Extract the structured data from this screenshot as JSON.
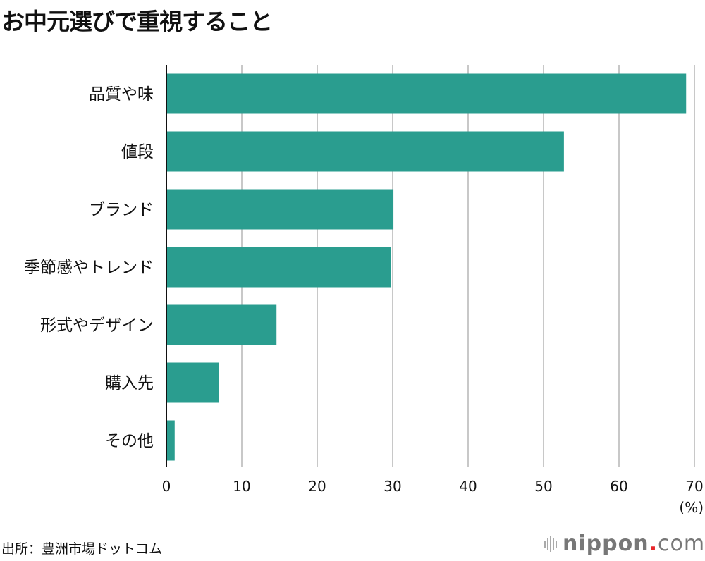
{
  "title": "お中元選びで重視すること",
  "source": "出所：豊洲市場ドットコム",
  "logo": {
    "name": "nippon",
    "dot": ".",
    "suffix": "com"
  },
  "chart_data": {
    "type": "bar",
    "orientation": "horizontal",
    "title": "お中元選びで重視すること",
    "categories": [
      "品質や味",
      "値段",
      "ブランド",
      "季節感やトレンド",
      "形式やデザイン",
      "購入先",
      "その他"
    ],
    "values": [
      68.9,
      52.7,
      30.1,
      29.8,
      14.6,
      7.0,
      1.1
    ],
    "xlim": [
      0,
      70
    ],
    "xticks": [
      "0",
      "10",
      "20",
      "30",
      "40",
      "50",
      "60",
      "70"
    ],
    "xunit": "(%)",
    "grid": true,
    "bar_color": "#2a9d8f"
  }
}
